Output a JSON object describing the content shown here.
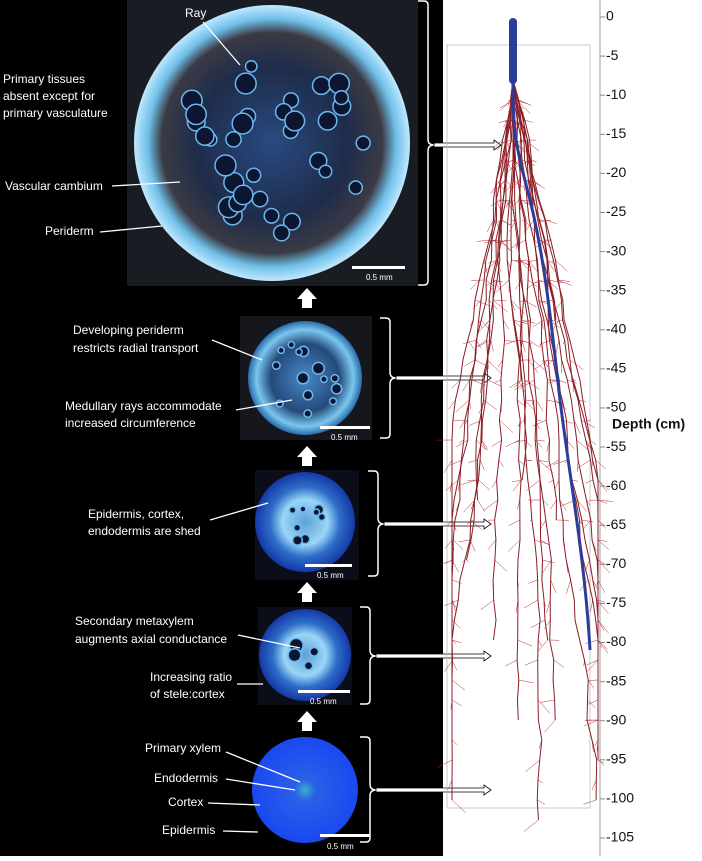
{
  "panels": [
    {
      "labels": [
        [
          "Ray"
        ],
        [
          "Primary tissues",
          "absent except for",
          "primary vasculature"
        ],
        [
          "Vascular cambium"
        ],
        [
          "Periderm"
        ]
      ],
      "scale": "0.5 mm"
    },
    {
      "labels": [
        [
          "Developing periderm",
          "restricts radial transport"
        ],
        [
          "Medullary rays accommodate",
          "increased circumference"
        ]
      ],
      "scale": "0.5 mm"
    },
    {
      "labels": [
        [
          "Epidermis, cortex,",
          "endodermis are shed"
        ]
      ],
      "scale": "0.5 mm"
    },
    {
      "labels": [
        [
          "Secondary metaxylem",
          "augments axial conductance"
        ],
        [
          "Increasing ratio",
          "of stele:cortex"
        ]
      ],
      "scale": "0.5 mm"
    },
    {
      "labels": [
        [
          "Primary xylem"
        ],
        [
          "Endodermis"
        ],
        [
          "Cortex"
        ],
        [
          "Epidermis"
        ]
      ],
      "scale": "0.5 mm"
    }
  ],
  "depth_axis": {
    "label": "Depth (cm)",
    "ticks": [
      0,
      -5,
      -10,
      -15,
      -20,
      -25,
      -30,
      -35,
      -40,
      -45,
      -50,
      -55,
      -60,
      -65,
      -70,
      -75,
      -80,
      -85,
      -90,
      -95,
      -100,
      -105
    ]
  }
}
